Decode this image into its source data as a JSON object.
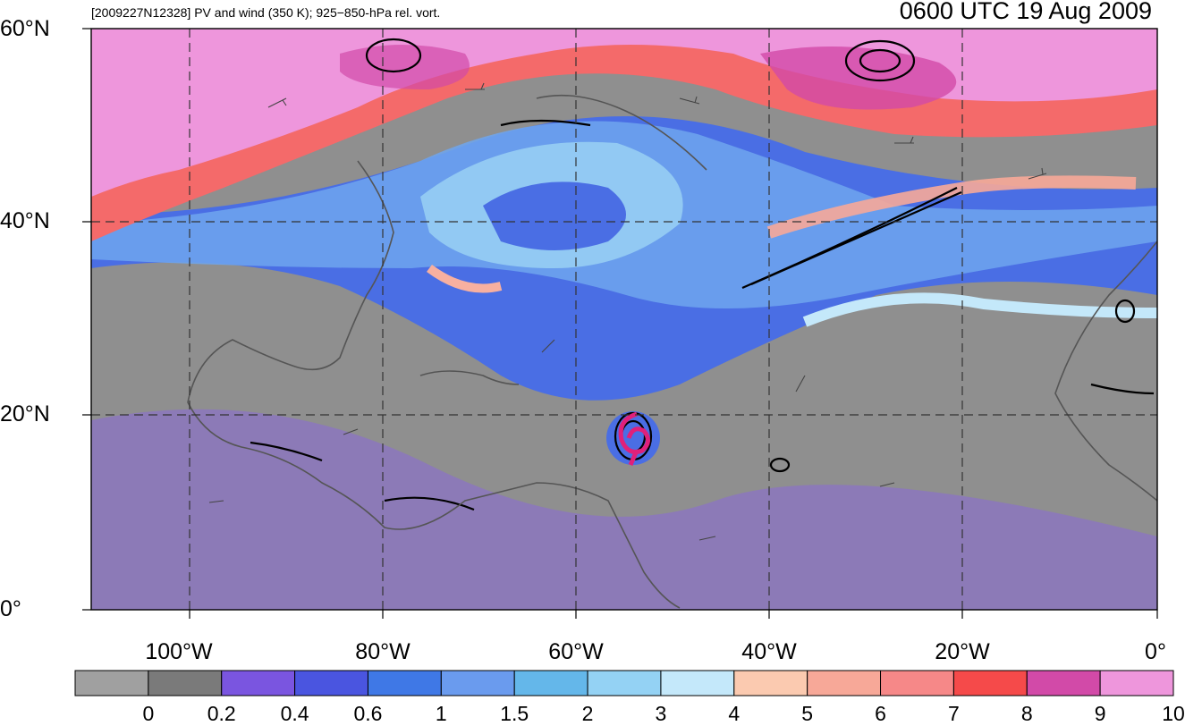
{
  "title_left": "[2009227N12328] PV and wind (350 K); 925−850-hPa rel. vort.",
  "title_right": "0600 UTC 19 Aug 2009",
  "lat_labels": [
    "60°N",
    "40°N",
    "20°N",
    "0°"
  ],
  "lon_labels": [
    "100°W",
    "80°W",
    "60°W",
    "40°W",
    "20°W",
    "0°"
  ],
  "colorbar": {
    "labels": [
      "0",
      "0.2",
      "0.4",
      "0.6",
      "1",
      "1.5",
      "2",
      "3",
      "4",
      "5",
      "6",
      "7",
      "8",
      "9",
      "10"
    ],
    "colors": [
      "#a0a0a0",
      "#7a7a7a",
      "#7a55e0",
      "#4a55e0",
      "#3f78e6",
      "#6a9bee",
      "#64b7ea",
      "#94d2f4",
      "#c4e8fa",
      "#fbcab0",
      "#f7a898",
      "#f68888",
      "#f54a4a",
      "#d24aa8",
      "#ee96dc"
    ]
  },
  "colors": {
    "storm_center": "#e0207a",
    "grid": "#333333",
    "coast": "#555555"
  }
}
